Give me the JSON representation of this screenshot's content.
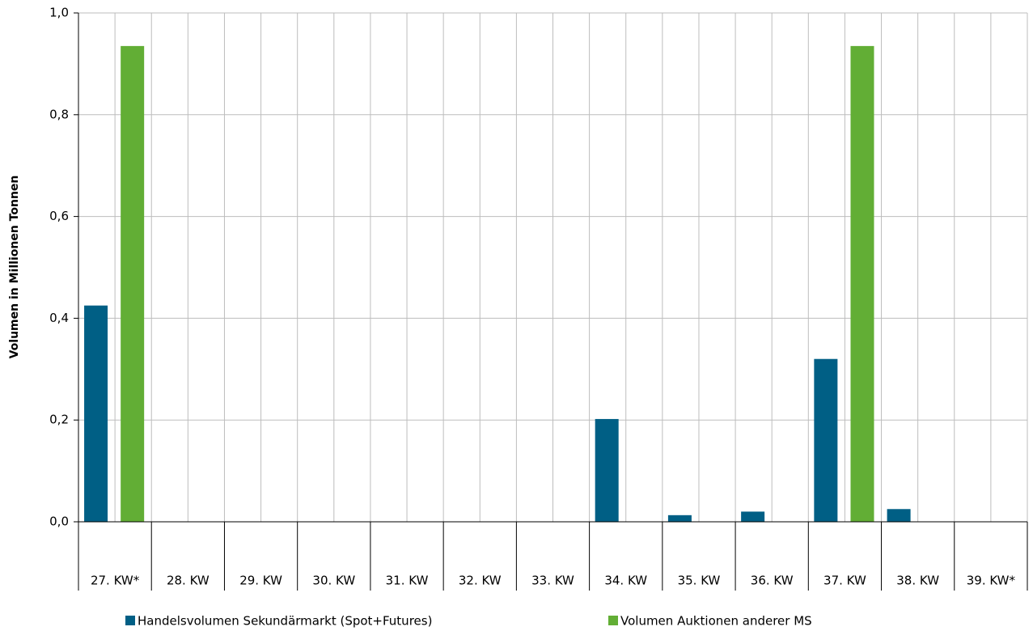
{
  "chart_data": {
    "type": "bar",
    "y_label": "Volumen in Millionen Tonnen",
    "categories": [
      "27. KW*",
      "28. KW",
      "29. KW",
      "30. KW",
      "31. KW",
      "32. KW",
      "33. KW",
      "34. KW",
      "35. KW",
      "36. KW",
      "37. KW",
      "38. KW",
      "39. KW*"
    ],
    "series": [
      {
        "name": "Handelsvolumen Sekundärmarkt (Spot+Futures)",
        "color": "#005f85",
        "values": [
          0.425,
          0,
          0,
          0,
          0,
          0,
          0,
          0.202,
          0.013,
          0.02,
          0.32,
          0.025,
          0
        ]
      },
      {
        "name": "Volumen Auktionen anderer MS",
        "color": "#62ae35",
        "values": [
          0.935,
          0,
          0,
          0,
          0,
          0,
          0,
          0,
          0,
          0,
          0.935,
          0,
          0
        ]
      }
    ],
    "ylim": [
      0,
      1
    ],
    "yticks": [
      {
        "value": 0,
        "label": "0,0"
      },
      {
        "value": 0.2,
        "label": "0,2"
      },
      {
        "value": 0.4,
        "label": "0,4"
      },
      {
        "value": 0.6,
        "label": "0,6"
      },
      {
        "value": 0.8,
        "label": "0,8"
      },
      {
        "value": 1,
        "label": "1,0"
      }
    ],
    "grid": true
  }
}
